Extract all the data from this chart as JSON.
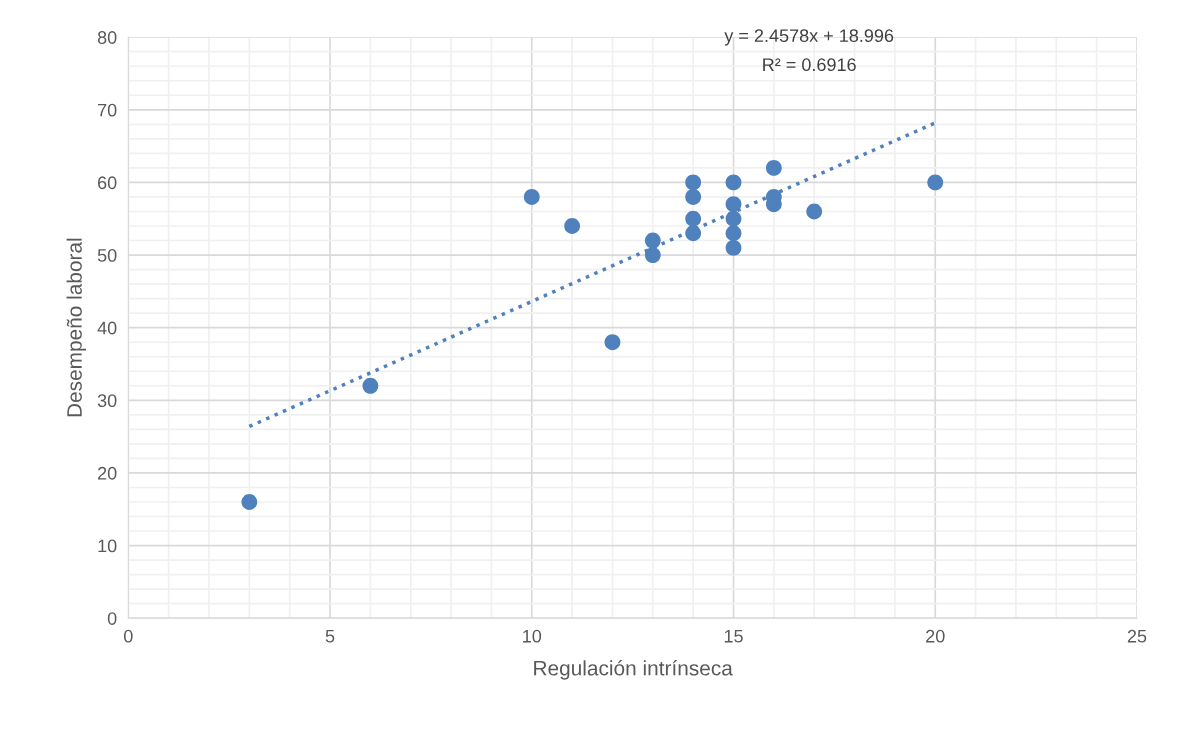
{
  "chart_data": {
    "type": "scatter",
    "xlabel": "Regulación intrínseca",
    "ylabel": "Desempeño laboral",
    "xlim": [
      0,
      25
    ],
    "ylim": [
      0,
      80
    ],
    "xticks": [
      0,
      {
        "value": 1,
        "label": null
      },
      {
        "value": 2,
        "label": null
      },
      {
        "value": 3,
        "label": null
      },
      {
        "value": 4,
        "label": null
      },
      5,
      {
        "value": 6,
        "label": null
      },
      {
        "value": 7,
        "label": null
      },
      {
        "value": 8,
        "label": null
      },
      {
        "value": 9,
        "label": null
      },
      10,
      {
        "value": 11,
        "label": null
      },
      {
        "value": 12,
        "label": null
      },
      {
        "value": 13,
        "label": null
      },
      {
        "value": 14,
        "label": null
      },
      15,
      {
        "value": 16,
        "label": null
      },
      {
        "value": 17,
        "label": null
      },
      {
        "value": 18,
        "label": null
      },
      {
        "value": 19,
        "label": null
      },
      20,
      {
        "value": 21,
        "label": null
      },
      {
        "value": 22,
        "label": null
      },
      {
        "value": 23,
        "label": null
      },
      {
        "value": 24,
        "label": null
      },
      25
    ],
    "yticks": [
      0,
      {
        "value": 2,
        "label": null
      },
      {
        "value": 4,
        "label": null
      },
      {
        "value": 6,
        "label": null
      },
      {
        "value": 8,
        "label": null
      },
      10,
      {
        "value": 12,
        "label": null
      },
      {
        "value": 14,
        "label": null
      },
      {
        "value": 16,
        "label": null
      },
      {
        "value": 18,
        "label": null
      },
      20,
      {
        "value": 22,
        "label": null
      },
      {
        "value": 24,
        "label": null
      },
      {
        "value": 26,
        "label": null
      },
      {
        "value": 28,
        "label": null
      },
      30,
      {
        "value": 32,
        "label": null
      },
      {
        "value": 34,
        "label": null
      },
      {
        "value": 36,
        "label": null
      },
      {
        "value": 38,
        "label": null
      },
      40,
      {
        "value": 42,
        "label": null
      },
      {
        "value": 44,
        "label": null
      },
      {
        "value": 46,
        "label": null
      },
      {
        "value": 48,
        "label": null
      },
      50,
      {
        "value": 52,
        "label": null
      },
      {
        "value": 54,
        "label": null
      },
      {
        "value": 56,
        "label": null
      },
      {
        "value": 58,
        "label": null
      },
      60,
      {
        "value": 62,
        "label": null
      },
      {
        "value": 64,
        "label": null
      },
      {
        "value": 66,
        "label": null
      },
      {
        "value": 68,
        "label": null
      },
      70,
      {
        "value": 72,
        "label": null
      },
      {
        "value": 74,
        "label": null
      },
      {
        "value": 76,
        "label": null
      },
      {
        "value": 78,
        "label": null
      },
      80
    ],
    "grid": true,
    "legend": false,
    "marker": "circle",
    "annotations": [
      "y = 2.4578x + 18.996",
      "R² = 0.6916"
    ],
    "series": [
      {
        "color": "#4f81bd",
        "x": [
          3,
          6,
          10,
          11,
          12,
          13,
          13,
          14,
          14,
          14,
          14,
          15,
          15,
          15,
          15,
          15,
          16,
          16,
          16,
          17,
          20
        ],
        "values": [
          16,
          32,
          58,
          54,
          38,
          52,
          50,
          60,
          58,
          55,
          53,
          60,
          57,
          55,
          53,
          51,
          62,
          58,
          57,
          56,
          60
        ]
      },
      {
        "type": "line",
        "color": "#4f81bd",
        "line_style": "dotted",
        "marker": "none",
        "x": [
          3,
          20
        ],
        "values": [
          26.4,
          68.2
        ]
      }
    ]
  }
}
